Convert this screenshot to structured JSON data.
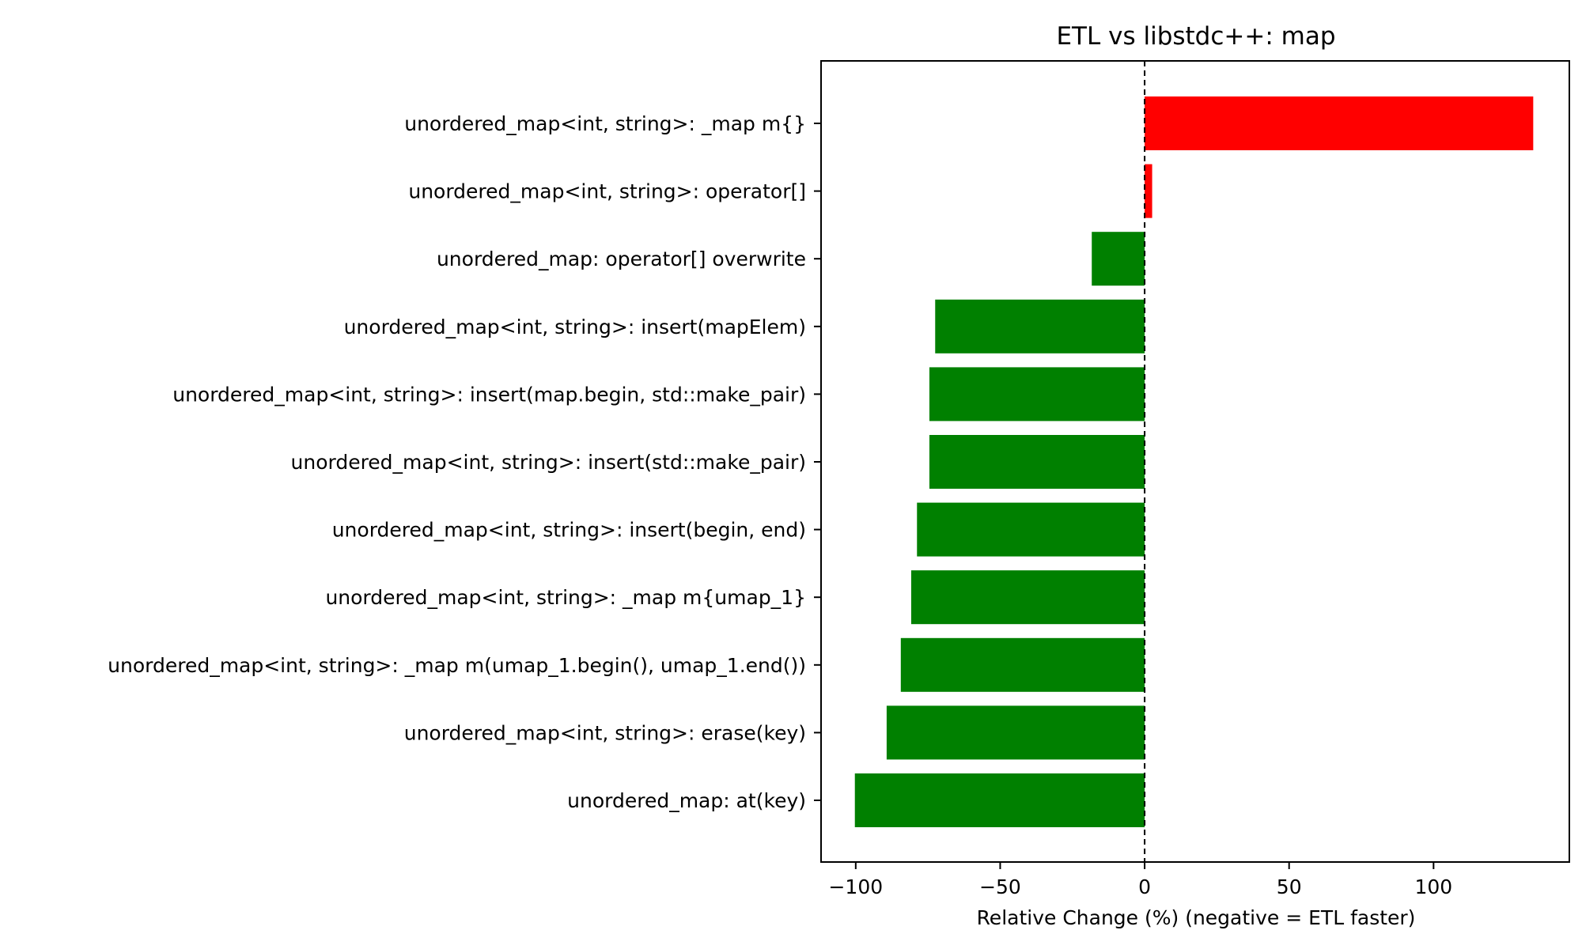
{
  "chart_data": {
    "type": "bar",
    "orientation": "horizontal",
    "title": "ETL vs libstdc++: map",
    "xlabel": "Relative Change (%)  (negative = ETL faster)",
    "ylabel": "",
    "xlim": [
      -112,
      147
    ],
    "xticks": [
      -100,
      -50,
      0,
      50,
      100
    ],
    "xtick_labels": [
      "−100",
      "−50",
      "0",
      "50",
      "100"
    ],
    "reference_line": 0,
    "grid": false,
    "colors": {
      "positive": "#ff0000",
      "negative": "#008000"
    },
    "categories": [
      "unordered_map<int, string>: _map m{}",
      "unordered_map<int, string>: operator[]",
      "unordered_map: operator[] overwrite",
      "unordered_map<int, string>: insert(mapElem)",
      "unordered_map<int, string>: insert(map.begin, std::make_pair)",
      "unordered_map<int, string>: insert(std::make_pair)",
      "unordered_map<int, string>: insert(begin, end)",
      "unordered_map<int, string>: _map m{umap_1}",
      "unordered_map<int, string>: _map m(umap_1.begin(), umap_1.end())",
      "unordered_map<int, string>: erase(key)",
      "unordered_map: at(key)"
    ],
    "values": [
      134.5,
      2.6,
      -18.3,
      -72.5,
      -74.5,
      -74.5,
      -78.8,
      -80.8,
      -84.4,
      -89.3,
      -100.3
    ]
  }
}
